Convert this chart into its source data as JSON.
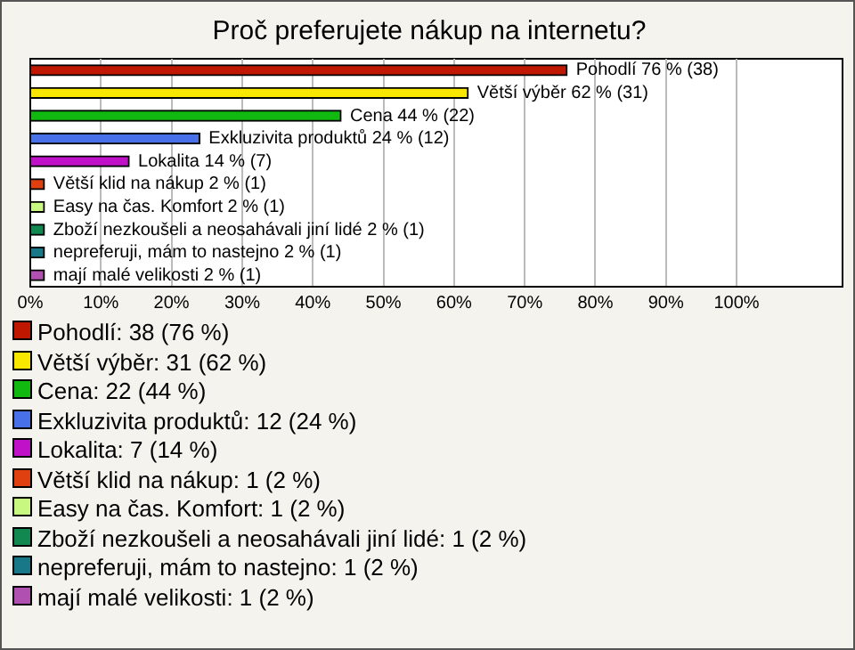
{
  "chart_data": {
    "type": "bar",
    "orientation": "horizontal",
    "title": "Proč preferujete nákup na internetu?",
    "categories": [
      "Pohodlí",
      "Větší výběr",
      "Cena",
      "Exkluzivita produktů",
      "Lokalita",
      "Větší klid na nákup",
      "Easy na čas. Komfort",
      "Zboží nezkoušeli a neosahávali jiní lidé",
      "nepreferuji, mám to nastejno",
      "mají malé velikosti"
    ],
    "values": [
      76,
      62,
      44,
      24,
      14,
      2,
      2,
      2,
      2,
      2
    ],
    "colors": [
      "#c01800",
      "#f8e800",
      "#10b810",
      "#4870e8",
      "#c010c8",
      "#e04010",
      "#c8f880",
      "#108850",
      "#187888",
      "#b050b0"
    ],
    "value_labels": [
      "76 % (38)",
      "62 % (31)",
      "44 % (22)",
      "24 % (12)",
      "14 % (7)",
      "2 % (1)",
      "2 % (1)",
      "2 % (1)",
      "2 % (1)",
      "2 % (1)"
    ],
    "annotations": [
      "Pohodlí: 38 (76 %)",
      "Větší výběr: 31 (62 %)",
      "Cena: 22 (44 %)",
      "Exkluzivita produktů: 12 (24 %)",
      "Lokalita: 7 (14 %)",
      "Větší klid na nákup: 1 (2 %)",
      "Easy na čas. Komfort: 1 (2 %)",
      "Zboží nezkoušeli a neosahávali jiní lidé: 1 (2 %)",
      "nepreferuji, mám to nastejno: 1 (2 %)",
      "mají malé velikosti: 1 (2 %)"
    ],
    "xlim": [
      0,
      115
    ],
    "xticks": [
      {
        "value": 0,
        "label": "0%"
      },
      {
        "value": 10,
        "label": "10%"
      },
      {
        "value": 20,
        "label": "20%"
      },
      {
        "value": 30,
        "label": "30%"
      },
      {
        "value": 40,
        "label": "40%"
      },
      {
        "value": 50,
        "label": "50%"
      },
      {
        "value": 60,
        "label": "60%"
      },
      {
        "value": 70,
        "label": "70%"
      },
      {
        "value": 80,
        "label": "80%"
      },
      {
        "value": 90,
        "label": "90%"
      },
      {
        "value": 100,
        "label": "100%"
      }
    ],
    "grid": "x"
  }
}
